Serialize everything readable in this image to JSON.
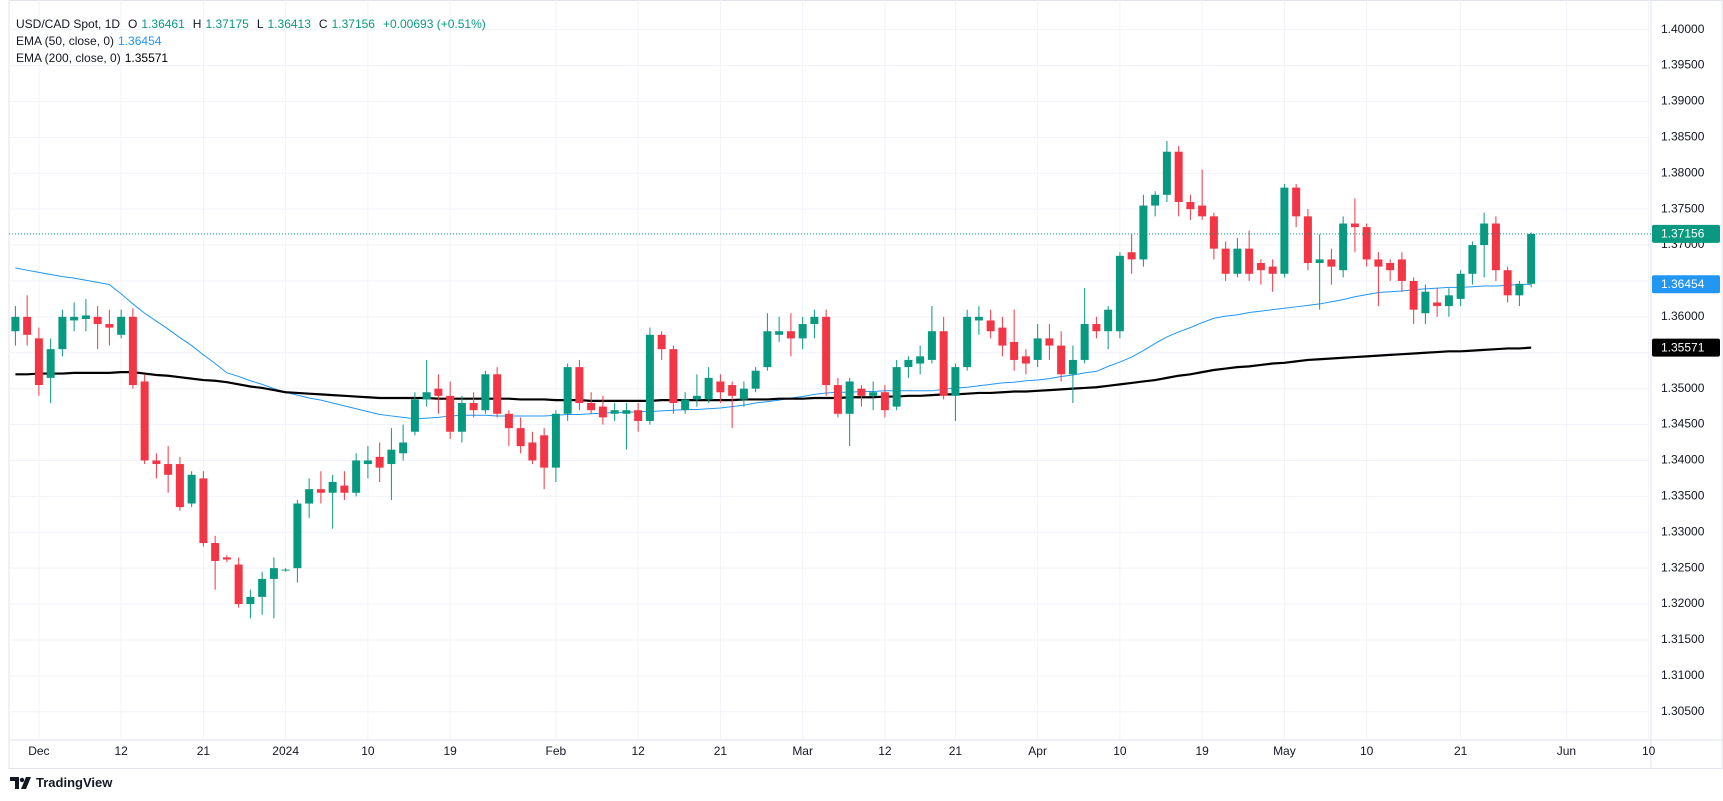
{
  "chart_data": {
    "type": "candlestick",
    "title": "USD/CAD Spot, 1D",
    "ohlc_legend": [
      {
        "key": "O",
        "value": 1.36461
      },
      {
        "key": "H",
        "value": 1.37175
      },
      {
        "key": "L",
        "value": 1.36413
      },
      {
        "key": "C",
        "value": 1.37156
      }
    ],
    "change": "+0.00693 (+0.51%)",
    "brand": "TradingView",
    "up_color": "#089981",
    "down_color": "#f23645",
    "grid": true,
    "ylim": [
      1.3019,
      1.4026
    ],
    "yticks": [
      {
        "value": 1.305,
        "label": "1.30500"
      },
      {
        "value": 1.31,
        "label": "1.31000"
      },
      {
        "value": 1.315,
        "label": "1.31500"
      },
      {
        "value": 1.32,
        "label": "1.32000"
      },
      {
        "value": 1.325,
        "label": "1.32500"
      },
      {
        "value": 1.33,
        "label": "1.33000"
      },
      {
        "value": 1.335,
        "label": "1.33500"
      },
      {
        "value": 1.34,
        "label": "1.34000"
      },
      {
        "value": 1.345,
        "label": "1.34500"
      },
      {
        "value": 1.35,
        "label": "1.35000"
      },
      {
        "value": 1.355,
        "label": "1.35500"
      },
      {
        "value": 1.36,
        "label": "1.36000"
      },
      {
        "value": 1.365,
        "label": "1.36500"
      },
      {
        "value": 1.37,
        "label": "1.37000"
      },
      {
        "value": 1.375,
        "label": "1.37500"
      },
      {
        "value": 1.38,
        "label": "1.38000"
      },
      {
        "value": 1.385,
        "label": "1.38500"
      },
      {
        "value": 1.39,
        "label": "1.39000"
      },
      {
        "value": 1.395,
        "label": "1.39500"
      },
      {
        "value": 1.4,
        "label": "1.40000"
      }
    ],
    "categories": [
      null,
      null,
      "Dec",
      null,
      null,
      null,
      null,
      null,
      null,
      "12",
      null,
      null,
      null,
      null,
      null,
      null,
      "21",
      null,
      null,
      null,
      null,
      null,
      null,
      "2024",
      null,
      null,
      null,
      null,
      null,
      null,
      "10",
      null,
      null,
      null,
      null,
      null,
      null,
      "19",
      null,
      null,
      null,
      null,
      null,
      null,
      null,
      null,
      "Feb",
      null,
      null,
      null,
      null,
      null,
      null,
      "12",
      null,
      null,
      null,
      null,
      null,
      null,
      "21",
      null,
      null,
      null,
      null,
      null,
      null,
      "Mar",
      null,
      null,
      null,
      null,
      null,
      null,
      "12",
      null,
      null,
      null,
      null,
      null,
      "21",
      null,
      null,
      null,
      null,
      null,
      null,
      "Apr",
      null,
      null,
      null,
      null,
      null,
      null,
      "10",
      null,
      null,
      null,
      null,
      null,
      null,
      "19",
      null,
      null,
      null,
      null,
      null,
      null,
      "May",
      null,
      null,
      null,
      null,
      null,
      null,
      "10",
      null,
      null,
      null,
      null,
      null,
      null,
      null,
      "21",
      null,
      null,
      null,
      null,
      null,
      null,
      null,
      null,
      "Jun",
      null,
      null,
      null,
      null,
      null,
      null,
      "10"
    ],
    "open": [
      1.358,
      1.36,
      1.357,
      1.3515,
      1.3555,
      1.3595,
      1.3597,
      1.36,
      1.359,
      1.3575,
      1.36,
      1.351,
      1.34,
      1.3395,
      1.3395,
      1.334,
      1.3375,
      1.3285,
      1.3265,
      1.3255,
      1.32,
      1.321,
      1.3235,
      1.3247,
      1.325,
      1.334,
      1.336,
      1.3355,
      1.3365,
      1.3355,
      1.3395,
      1.3405,
      1.3395,
      1.341,
      1.344,
      1.3485,
      1.35,
      1.349,
      1.344,
      1.348,
      1.347,
      1.352,
      1.3465,
      1.3445,
      1.3425,
      1.3435,
      1.339,
      1.3465,
      1.353,
      1.348,
      1.3475,
      1.3465,
      1.3465,
      1.347,
      1.3455,
      1.3575,
      1.3555,
      1.347,
      1.3485,
      1.3485,
      1.351,
      1.3505,
      1.3485,
      1.35,
      1.353,
      1.3575,
      1.358,
      1.357,
      1.359,
      1.36,
      1.3505,
      1.3465,
      1.35,
      1.349,
      1.3495,
      1.3475,
      1.353,
      1.3535,
      1.354,
      1.358,
      1.349,
      1.353,
      1.3595,
      1.3595,
      1.3585,
      1.3565,
      1.3545,
      1.354,
      1.357,
      1.356,
      1.352,
      1.354,
      1.359,
      1.358,
      1.358,
      1.369,
      1.368,
      1.3755,
      1.377,
      1.383,
      1.376,
      1.3755,
      1.374,
      1.3695,
      1.366,
      1.3695,
      1.3675,
      1.367,
      1.366,
      1.378,
      1.374,
      1.3675,
      1.368,
      1.3665,
      1.373,
      1.3725,
      1.368,
      1.3675,
      1.368,
      1.365,
      1.3605,
      1.362,
      1.3615,
      1.3625,
      1.366,
      1.37,
      1.373,
      1.3665,
      1.363,
      1.36461,
      null,
      null,
      null,
      null,
      null,
      null,
      null,
      null,
      null,
      null
    ],
    "high": [
      1.3615,
      1.363,
      1.3585,
      1.357,
      1.361,
      1.362,
      1.3625,
      1.3615,
      1.361,
      1.361,
      1.3612,
      1.352,
      1.341,
      1.342,
      1.3405,
      1.3385,
      1.3385,
      1.3295,
      1.3268,
      1.3265,
      1.322,
      1.3245,
      1.3265,
      1.325,
      1.3345,
      1.3375,
      1.3385,
      1.338,
      1.3385,
      1.341,
      1.342,
      1.3425,
      1.3445,
      1.345,
      1.3495,
      1.354,
      1.352,
      1.351,
      1.349,
      1.3495,
      1.3525,
      1.353,
      1.347,
      1.346,
      1.344,
      1.3445,
      1.347,
      1.3535,
      1.354,
      1.3495,
      1.349,
      1.348,
      1.348,
      1.348,
      1.3585,
      1.358,
      1.356,
      1.3495,
      1.352,
      1.353,
      1.352,
      1.351,
      1.351,
      1.353,
      1.3605,
      1.36,
      1.3605,
      1.36,
      1.361,
      1.361,
      1.3515,
      1.3515,
      1.3505,
      1.351,
      1.3505,
      1.354,
      1.3545,
      1.356,
      1.3615,
      1.36,
      1.3535,
      1.361,
      1.3615,
      1.361,
      1.36,
      1.361,
      1.3555,
      1.359,
      1.359,
      1.358,
      1.356,
      1.364,
      1.36,
      1.3615,
      1.369,
      1.3715,
      1.377,
      1.3775,
      1.3845,
      1.3838,
      1.377,
      1.3805,
      1.3745,
      1.3705,
      1.371,
      1.372,
      1.368,
      1.368,
      1.3785,
      1.3785,
      1.375,
      1.3715,
      1.3695,
      1.374,
      1.3765,
      1.373,
      1.369,
      1.368,
      1.369,
      1.3655,
      1.3645,
      1.364,
      1.364,
      1.3665,
      1.3705,
      1.3745,
      1.374,
      1.367,
      1.365,
      1.37175,
      null,
      null,
      null,
      null,
      null,
      null,
      null,
      null,
      null,
      null
    ],
    "low": [
      1.356,
      1.356,
      1.349,
      1.348,
      1.3545,
      1.358,
      1.358,
      1.3555,
      1.356,
      1.357,
      1.35,
      1.3395,
      1.3375,
      1.3355,
      1.333,
      1.3335,
      1.328,
      1.322,
      1.3258,
      1.3195,
      1.318,
      1.3185,
      1.318,
      1.3245,
      1.323,
      1.332,
      1.334,
      1.3305,
      1.3345,
      1.335,
      1.3375,
      1.337,
      1.3345,
      1.34,
      1.3435,
      1.3475,
      1.3465,
      1.343,
      1.3425,
      1.346,
      1.3465,
      1.346,
      1.342,
      1.341,
      1.3395,
      1.336,
      1.337,
      1.3455,
      1.347,
      1.3465,
      1.345,
      1.3455,
      1.3415,
      1.344,
      1.345,
      1.354,
      1.3465,
      1.3465,
      1.3475,
      1.348,
      1.348,
      1.3445,
      1.3475,
      1.3495,
      1.3525,
      1.3565,
      1.3545,
      1.3555,
      1.357,
      1.349,
      1.346,
      1.342,
      1.3475,
      1.347,
      1.346,
      1.347,
      1.3515,
      1.352,
      1.3535,
      1.3485,
      1.3455,
      1.3525,
      1.3575,
      1.357,
      1.3545,
      1.3525,
      1.352,
      1.353,
      1.354,
      1.351,
      1.348,
      1.3535,
      1.357,
      1.3555,
      1.357,
      1.366,
      1.367,
      1.374,
      1.376,
      1.374,
      1.3735,
      1.3735,
      1.368,
      1.365,
      1.3655,
      1.365,
      1.3645,
      1.3635,
      1.3655,
      1.3725,
      1.3665,
      1.361,
      1.3645,
      1.3655,
      1.369,
      1.367,
      1.3615,
      1.365,
      1.3635,
      1.359,
      1.359,
      1.36,
      1.36,
      1.3615,
      1.3645,
      1.3655,
      1.365,
      1.362,
      1.3615,
      1.36413,
      null,
      null,
      null,
      null,
      null,
      null,
      null,
      null,
      null,
      null
    ],
    "close": [
      1.36,
      1.3575,
      1.3505,
      1.3555,
      1.36,
      1.36,
      1.3602,
      1.359,
      1.3585,
      1.36,
      1.3505,
      1.34,
      1.3395,
      1.338,
      1.3335,
      1.338,
      1.3285,
      1.326,
      1.3262,
      1.32,
      1.321,
      1.3235,
      1.325,
      1.3248,
      1.334,
      1.336,
      1.3355,
      1.337,
      1.3355,
      1.34,
      1.34,
      1.339,
      1.3415,
      1.3425,
      1.3485,
      1.3495,
      1.349,
      1.344,
      1.348,
      1.347,
      1.352,
      1.3465,
      1.3445,
      1.342,
      1.34,
      1.339,
      1.3465,
      1.353,
      1.348,
      1.347,
      1.346,
      1.347,
      1.347,
      1.3455,
      1.3575,
      1.3555,
      1.348,
      1.3485,
      1.349,
      1.3515,
      1.3495,
      1.349,
      1.35,
      1.3525,
      1.358,
      1.358,
      1.357,
      1.359,
      1.36,
      1.3505,
      1.3465,
      1.351,
      1.349,
      1.3495,
      1.347,
      1.353,
      1.354,
      1.3545,
      1.358,
      1.349,
      1.353,
      1.36,
      1.36,
      1.358,
      1.356,
      1.354,
      1.3535,
      1.357,
      1.356,
      1.352,
      1.354,
      1.359,
      1.358,
      1.361,
      1.3685,
      1.368,
      1.3755,
      1.377,
      1.383,
      1.376,
      1.375,
      1.374,
      1.3695,
      1.366,
      1.3695,
      1.366,
      1.3665,
      1.366,
      1.378,
      1.374,
      1.3675,
      1.368,
      1.367,
      1.373,
      1.3725,
      1.368,
      1.367,
      1.3665,
      1.365,
      1.361,
      1.3635,
      1.3615,
      1.363,
      1.366,
      1.37,
      1.373,
      1.3665,
      1.363,
      1.3646,
      1.37156,
      null,
      null,
      null,
      null,
      null,
      null,
      null,
      null,
      null,
      null
    ],
    "series": [
      {
        "name": "EMA (50, close, 0)",
        "color": "#2196f3",
        "legend_value": 1.36454,
        "label_text_color": "#ffffff",
        "values": [
          1.3668,
          1.3665,
          1.3662,
          1.3659,
          1.3656,
          1.3654,
          1.3651,
          1.3648,
          1.3645,
          1.3632,
          1.3618,
          1.3605,
          1.3594,
          1.3583,
          1.3571,
          1.356,
          1.3547,
          1.3535,
          1.3522,
          1.3517,
          1.3511,
          1.3506,
          1.35,
          1.3495,
          1.3491,
          1.3487,
          1.3484,
          1.348,
          1.3476,
          1.3472,
          1.3468,
          1.3464,
          1.3462,
          1.346,
          1.3458,
          1.3459,
          1.346,
          1.3462,
          1.3463,
          1.3463,
          1.3463,
          1.3462,
          1.3462,
          1.3462,
          1.3462,
          1.3462,
          1.3463,
          1.3464,
          1.3464,
          1.3465,
          1.3466,
          1.3467,
          1.3467,
          1.3468,
          1.3468,
          1.3469,
          1.347,
          1.3471,
          1.3471,
          1.3472,
          1.3473,
          1.3475,
          1.3477,
          1.348,
          1.3482,
          1.3484,
          1.3487,
          1.3489,
          1.3492,
          1.3494,
          1.3495,
          1.3495,
          1.3496,
          1.3496,
          1.3497,
          1.3497,
          1.3497,
          1.3497,
          1.3497,
          1.3499,
          1.3501,
          1.3502,
          1.3504,
          1.3506,
          1.3508,
          1.3509,
          1.3511,
          1.3512,
          1.3514,
          1.3517,
          1.3519,
          1.3522,
          1.3524,
          1.3531,
          1.3537,
          1.3544,
          1.3553,
          1.3563,
          1.3572,
          1.3579,
          1.3585,
          1.3592,
          1.3598,
          1.3601,
          1.3603,
          1.3606,
          1.3608,
          1.361,
          1.3612,
          1.3614,
          1.3616,
          1.3618,
          1.3621,
          1.3624,
          1.3628,
          1.3631,
          1.3634,
          1.3635,
          1.3636,
          1.3638,
          1.3639,
          1.364,
          1.3641,
          1.3641,
          1.3642,
          1.3643,
          1.3643,
          1.3644,
          1.3645,
          1.36454,
          null,
          null,
          null,
          null,
          null,
          null,
          null,
          null,
          null,
          null
        ]
      },
      {
        "name": "EMA (200, close, 0)",
        "color": "#000000",
        "legend_value": 1.35571,
        "label_text_color": "#ffffff",
        "values": [
          1.352,
          1.352,
          1.3521,
          1.3521,
          1.3521,
          1.3522,
          1.3522,
          1.3522,
          1.3522,
          1.3523,
          1.3523,
          1.3521,
          1.3519,
          1.3518,
          1.3516,
          1.3514,
          1.3512,
          1.3511,
          1.3509,
          1.3506,
          1.3503,
          1.3501,
          1.3498,
          1.3495,
          1.3494,
          1.3493,
          1.3492,
          1.3491,
          1.349,
          1.3489,
          1.3488,
          1.3487,
          1.3487,
          1.3487,
          1.3487,
          1.3487,
          1.3486,
          1.3486,
          1.3486,
          1.3486,
          1.3486,
          1.3486,
          1.3486,
          1.3485,
          1.3485,
          1.3485,
          1.3484,
          1.3484,
          1.3484,
          1.3483,
          1.3483,
          1.3483,
          1.3483,
          1.3483,
          1.3483,
          1.3484,
          1.3484,
          1.3484,
          1.3484,
          1.3484,
          1.3484,
          1.3484,
          1.3485,
          1.3485,
          1.3485,
          1.3486,
          1.3486,
          1.3486,
          1.3487,
          1.3487,
          1.3487,
          1.3488,
          1.3488,
          1.3488,
          1.3489,
          1.3489,
          1.349,
          1.349,
          1.3491,
          1.3492,
          1.3492,
          1.3493,
          1.3494,
          1.3494,
          1.3495,
          1.3496,
          1.3496,
          1.3497,
          1.3498,
          1.3499,
          1.35,
          1.3501,
          1.3502,
          1.3504,
          1.3506,
          1.3508,
          1.351,
          1.3512,
          1.3515,
          1.3518,
          1.352,
          1.3523,
          1.3526,
          1.3528,
          1.353,
          1.3531,
          1.3533,
          1.3535,
          1.3536,
          1.3538,
          1.354,
          1.3541,
          1.3542,
          1.3543,
          1.3544,
          1.3545,
          1.3546,
          1.3547,
          1.3548,
          1.3549,
          1.355,
          1.3551,
          1.3552,
          1.3552,
          1.3553,
          1.3554,
          1.3555,
          1.3556,
          1.3556,
          1.35571,
          null,
          null,
          null,
          null,
          null,
          null,
          null,
          null,
          null,
          null
        ]
      }
    ]
  }
}
